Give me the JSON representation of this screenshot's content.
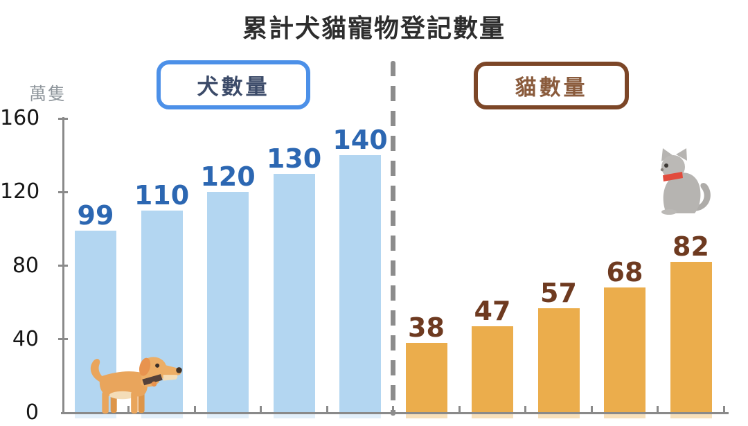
{
  "title": "累計犬貓寵物登記數量",
  "y_axis": {
    "unit_label": "萬隻",
    "ticks": [
      0,
      40,
      80,
      120,
      160
    ],
    "max": 160
  },
  "legend": {
    "dog_label": "犬數量",
    "cat_label": "貓數量"
  },
  "colors": {
    "dog_bar": "#B3D6F1",
    "dog_value_text": "#2C67B2",
    "dog_legend_border": "#4C90E8",
    "dog_legend_text": "#3C4B69",
    "cat_bar": "#EBAD4C",
    "cat_value_text": "#6E3A20",
    "cat_legend_border": "#7C4627",
    "cat_legend_text": "#8A5B3C",
    "axis": "#8A8A8A",
    "divider": "#8C8C8C",
    "title_text": "#2D2D2D",
    "unit_text": "#8E959B"
  },
  "chart_data": {
    "type": "bar",
    "title": "累計犬貓寵物登記數量",
    "ylabel": "萬隻",
    "xlabel": "",
    "ylim": [
      0,
      160
    ],
    "yticks": [
      0,
      40,
      80,
      120,
      160
    ],
    "grid": false,
    "legend_position": "top",
    "series": [
      {
        "name": "犬數量",
        "values": [
          99,
          110,
          120,
          130,
          140
        ]
      },
      {
        "name": "貓數量",
        "values": [
          38,
          47,
          57,
          68,
          82
        ]
      }
    ],
    "value_labels_shown": true,
    "divider_between_series": true
  }
}
